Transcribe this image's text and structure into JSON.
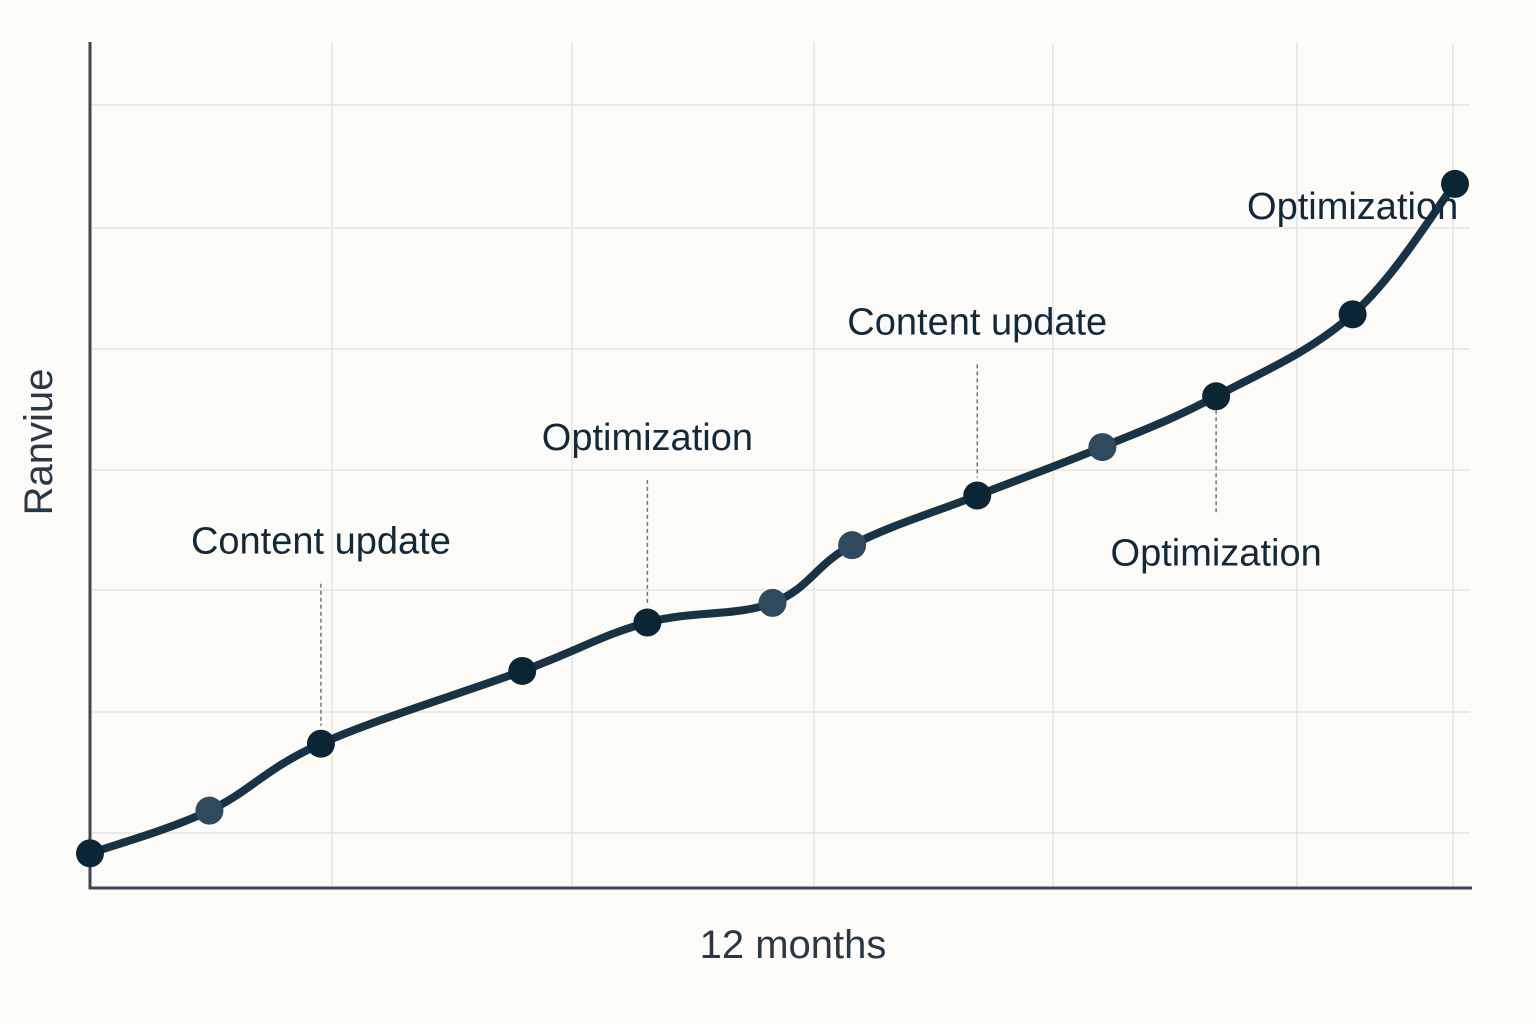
{
  "chart_data": {
    "type": "line",
    "xlabel": "12 months",
    "ylabel": "Ranviue",
    "xlim": [
      0,
      12
    ],
    "ylim": [
      0,
      7
    ],
    "grid": true,
    "series": [
      {
        "values": [
          {
            "x": 0,
            "y": 0.3
          },
          {
            "x": 1.05,
            "y": 0.67
          },
          {
            "x": 2.03,
            "y": 1.25
          },
          {
            "x": 3.8,
            "y": 1.88
          },
          {
            "x": 4.9,
            "y": 2.3
          },
          {
            "x": 6.0,
            "y": 2.47
          },
          {
            "x": 6.7,
            "y": 2.97
          },
          {
            "x": 7.8,
            "y": 3.4
          },
          {
            "x": 8.9,
            "y": 3.82
          },
          {
            "x": 9.9,
            "y": 4.26
          },
          {
            "x": 11.1,
            "y": 4.97
          },
          {
            "x": 12.0,
            "y": 6.1
          }
        ]
      }
    ],
    "annotations": [
      {
        "text": "Content update",
        "x": 2.03,
        "y": 1.25,
        "label_y": 3.0,
        "leader": true
      },
      {
        "text": "Optimization",
        "x": 4.9,
        "y": 2.3,
        "label_y": 3.9,
        "leader": true
      },
      {
        "text": "Content update",
        "x": 7.8,
        "y": 3.4,
        "label_y": 4.9,
        "leader": true
      },
      {
        "text": "Optimization",
        "x": 9.9,
        "y": 4.26,
        "label_y": 2.9,
        "leader": true
      },
      {
        "text": "Optimization",
        "x": 11.1,
        "y": 4.97,
        "label_y": 5.9,
        "leader": false
      }
    ],
    "colors": {
      "line": "#1a3344",
      "point_dark": "#0c2535",
      "point_light": "#2f4a5c",
      "grid": "#e3e4e2",
      "axis": "#3c4752",
      "background": "#fcfbf7"
    }
  }
}
